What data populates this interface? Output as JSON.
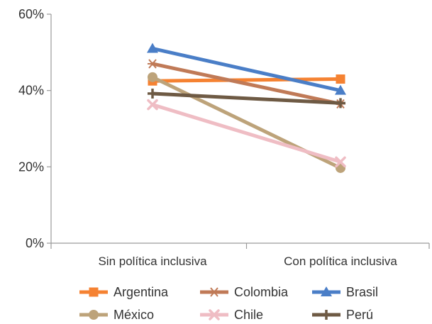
{
  "chart_data": {
    "type": "line",
    "title": "",
    "xlabel": "",
    "ylabel": "",
    "categories": [
      "Sin política inclusiva",
      "Con política inclusiva"
    ],
    "ylim": [
      0,
      60
    ],
    "yticks": [
      0,
      20,
      40,
      60
    ],
    "ytick_labels": [
      "0%",
      "20%",
      "40%",
      "60%"
    ],
    "grid": false,
    "legend_position": "bottom",
    "series": [
      {
        "name": "Argentina",
        "values": [
          42.5,
          43
        ],
        "color": "#F58232",
        "marker": "square"
      },
      {
        "name": "Colombia",
        "values": [
          47,
          36.5
        ],
        "color": "#C07A57",
        "marker": "asterisk"
      },
      {
        "name": "Brasil",
        "values": [
          51,
          40
        ],
        "color": "#4A7EC7",
        "marker": "triangle"
      },
      {
        "name": "México",
        "values": [
          43.5,
          19.7
        ],
        "color": "#BDA37A",
        "marker": "circle"
      },
      {
        "name": "Chile",
        "values": [
          36.3,
          21.3
        ],
        "color": "#EFBDC4",
        "marker": "x"
      },
      {
        "name": "Perú",
        "values": [
          39.2,
          36.7
        ],
        "color": "#6E5A44",
        "marker": "plus"
      }
    ]
  }
}
